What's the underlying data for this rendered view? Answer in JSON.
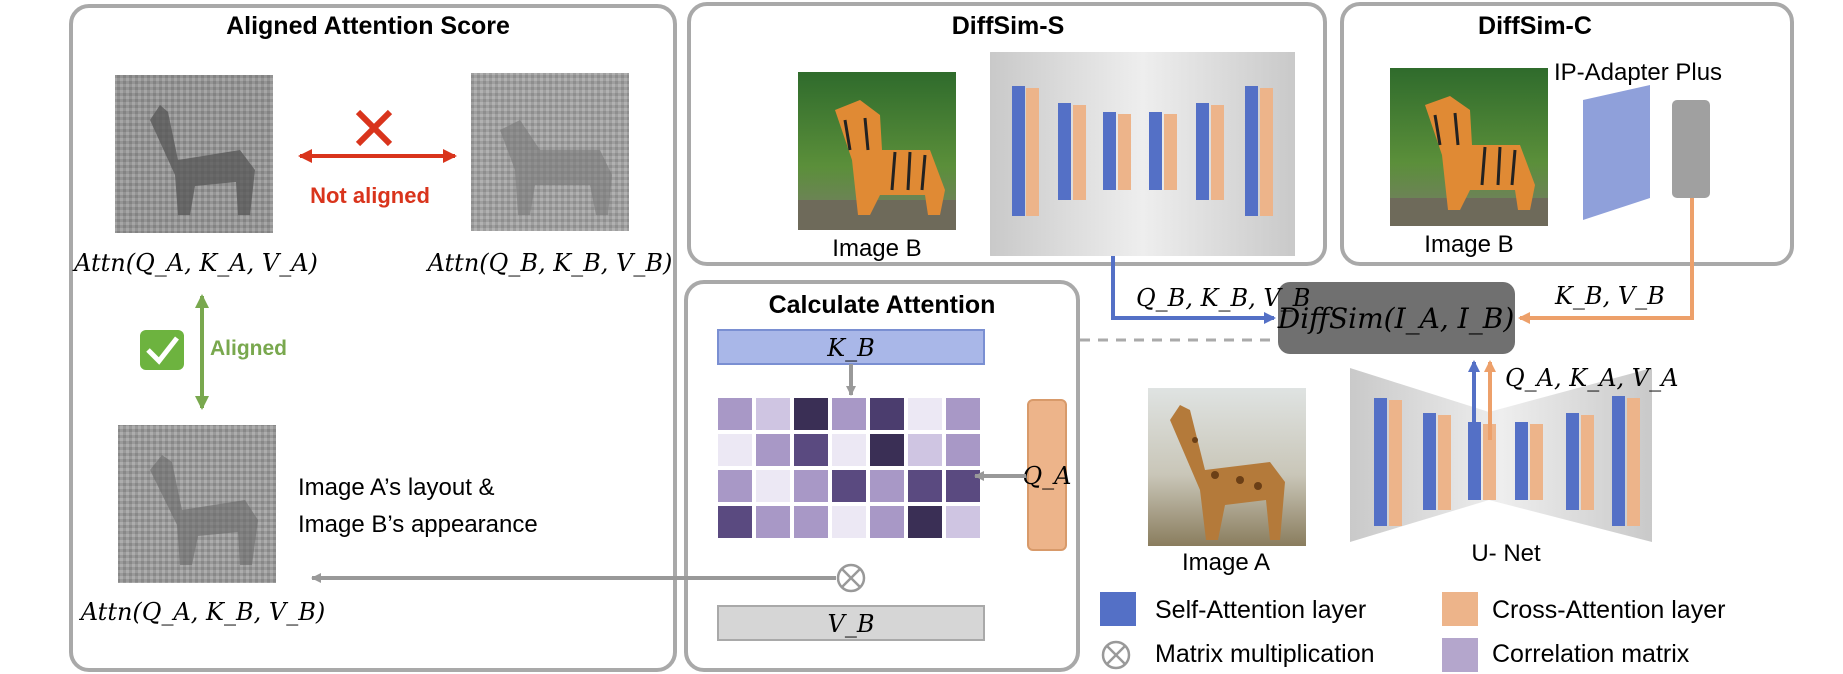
{
  "panels": {
    "aligned": {
      "title": "Aligned Attention Score"
    },
    "diffsim_s": {
      "title": "DiffSim-S",
      "image_label": "Image B"
    },
    "diffsim_c": {
      "title": "DiffSim-C",
      "adapter_label": "IP-Adapter Plus",
      "image_label": "Image B"
    },
    "calc": {
      "title": "Calculate Attention",
      "k_label": "K_B",
      "q_label": "Q_A",
      "v_label": "V_B"
    }
  },
  "attention_maps": {
    "a": "Attn(Q_A, K_A, V_A)",
    "b": "Attn(Q_B, K_B, V_B)",
    "mixed": "Attn(Q_A, K_B, V_B)"
  },
  "relations": {
    "not_aligned": "Not aligned",
    "aligned": "Aligned",
    "mixed_caption_line1": "Image A’s layout &",
    "mixed_caption_line2": "Image B’s appearance"
  },
  "center": {
    "diffsim": "DiffSim(I_A, I_B)",
    "qkv_b": "Q_B, K_B, V_B",
    "kv_b": "K_B, V_B",
    "qkv_a": "Q_A, K_A, V_A",
    "image_a_label": "Image A",
    "unet_label": "U- Net"
  },
  "legend": {
    "self_attention": "Self-Attention layer",
    "cross_attention": "Cross-Attention layer",
    "matmul": "Matrix multiplication",
    "correlation": "Correlation matrix"
  },
  "colors": {
    "self_attention": "#5470C6",
    "cross_attention": "#EDB48A",
    "correlation": "#B4A6CC",
    "k_bar": "#A9B7E8",
    "diffsim_box": "#707070",
    "not_aligned": "#D9341C",
    "aligned": "#79A84E"
  }
}
